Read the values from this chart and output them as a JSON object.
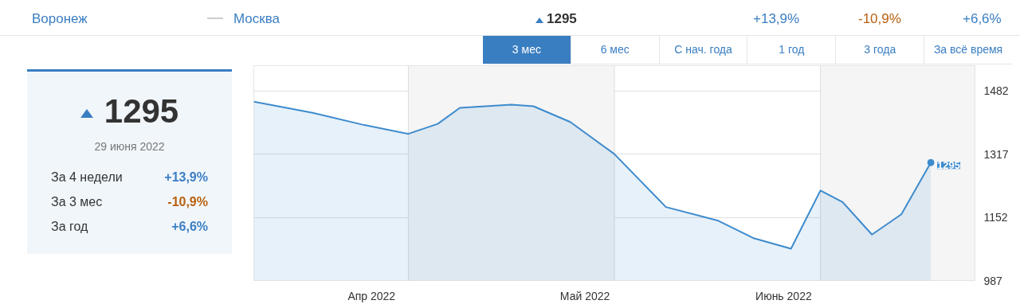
{
  "chart_data": [
    {
      "type": "other",
      "annotations": [
        "Воронеж",
        "Москва",
        "1295",
        "+13,9%",
        "-10,9%",
        "+6,6%",
        "1295",
        "29 июня 2022",
        "За 4 недели",
        "+13,9%",
        "За 3 мес",
        "-10,9%",
        "За год",
        "+6,6%"
      ]
    },
    {
      "type": "area",
      "color": "#3d8bcd",
      "x": [
        "2022-03-29",
        "2022-04-06",
        "2022-04-13",
        "2022-04-19",
        "2022-04-23",
        "2022-04-26",
        "2022-05-03",
        "2022-05-06",
        "2022-05-11",
        "2022-05-17",
        "2022-05-24",
        "2022-05-31",
        "2022-06-05",
        "2022-06-10",
        "2022-06-14",
        "2022-06-17",
        "2022-06-21",
        "2022-06-25",
        "2022-06-29"
      ],
      "values": [
        1454,
        1425,
        1393,
        1370,
        1396,
        1438,
        1446,
        1442,
        1401,
        1317,
        1179,
        1144,
        1097,
        1070,
        1222,
        1192,
        1107,
        1160,
        1295
      ],
      "value_labels": [
        null,
        null,
        null,
        null,
        null,
        null,
        null,
        null,
        null,
        null,
        null,
        null,
        null,
        null,
        null,
        null,
        null,
        null,
        "1295"
      ],
      "xlim": [
        "2022-03-29",
        "2022-07-05"
      ],
      "xticks": [
        {
          "value": "2022-04-14",
          "label": "Апр 2022"
        },
        {
          "value": "2022-05-13",
          "label": "Май 2022"
        },
        {
          "value": "2022-06-09",
          "label": "Июнь 2022"
        }
      ],
      "ylim": [
        987,
        1548
      ],
      "yticks": [
        987,
        1152,
        1317,
        1482
      ],
      "grid": "y",
      "bands": [
        {
          "axis": "x",
          "from": "2022-04-19",
          "to": "2022-05-17",
          "color": "#f5f5f5"
        },
        {
          "axis": "x",
          "from": "2022-06-14",
          "to": "2022-07-05",
          "color": "#f5f5f5"
        }
      ],
      "annotations": [
        "3 мес",
        "6 мес",
        "С нач. года",
        "1 год",
        "3 года",
        "За всё время"
      ]
    }
  ]
}
